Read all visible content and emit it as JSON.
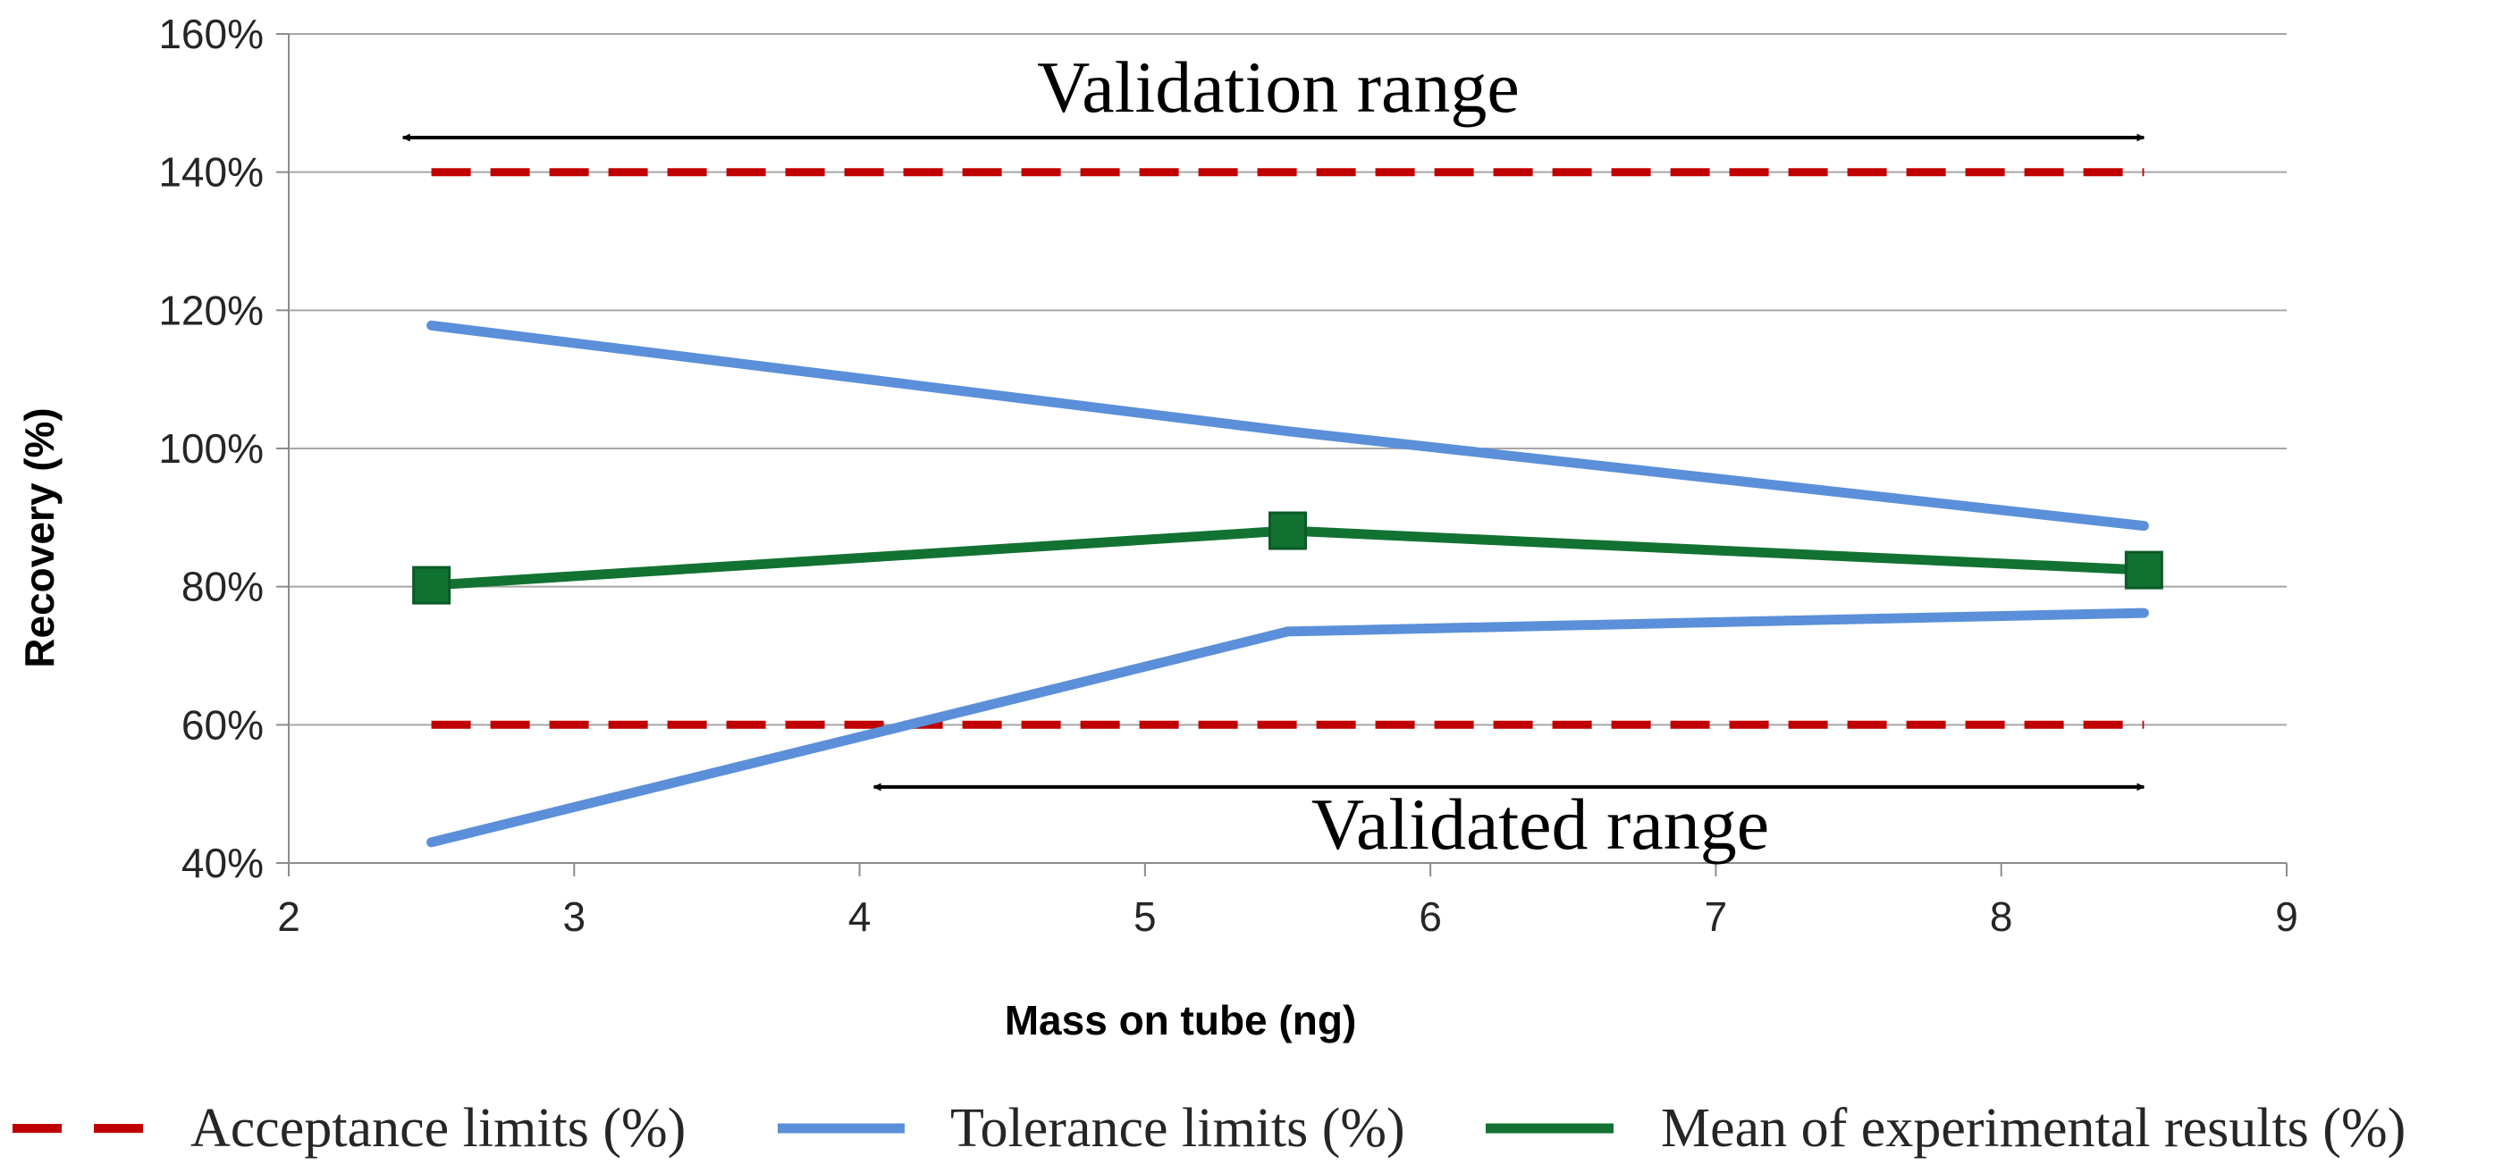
{
  "chart_data": {
    "type": "line",
    "title": "",
    "xlabel": "Mass on tube (ng)",
    "ylabel": "Recovery (%)",
    "xlim": [
      2,
      9
    ],
    "ylim": [
      40,
      160
    ],
    "x_ticks": [
      2,
      3,
      4,
      5,
      6,
      7,
      8,
      9
    ],
    "x_tick_labels": [
      "2",
      "3",
      "4",
      "5",
      "6",
      "7",
      "8",
      "9"
    ],
    "y_ticks": [
      40,
      60,
      80,
      100,
      120,
      140,
      160
    ],
    "y_tick_labels": [
      "40%",
      "60%",
      "80%",
      "100%",
      "120%",
      "140%",
      "160%"
    ],
    "grid": "horizontal",
    "series": [
      {
        "name": "Acceptance limits (%)",
        "role": "upper",
        "color": "#C00000",
        "style": "dashed",
        "x": [
          2.5,
          8.5
        ],
        "values": [
          140,
          140
        ]
      },
      {
        "name": "Acceptance limits (%)",
        "role": "lower",
        "color": "#C00000",
        "style": "dashed",
        "x": [
          2.5,
          8.5
        ],
        "values": [
          60,
          60
        ]
      },
      {
        "name": "Tolerance limits (%)",
        "role": "upper",
        "color": "#5B8FD9",
        "style": "solid",
        "x": [
          2.5,
          5.5,
          8.5
        ],
        "values": [
          117.8,
          102.5,
          88.8
        ]
      },
      {
        "name": "Tolerance limits (%)",
        "role": "lower",
        "color": "#5B8FD9",
        "style": "solid",
        "x": [
          2.5,
          5.5,
          8.5
        ],
        "values": [
          43,
          73.5,
          76.2
        ]
      },
      {
        "name": "Mean of experimental results (%)",
        "role": "mean",
        "color": "#127232",
        "style": "solid",
        "marker": "square",
        "x": [
          2.5,
          5.5,
          8.5
        ],
        "values": [
          80.2,
          88.1,
          82.4
        ]
      }
    ],
    "annotations": [
      {
        "text": "Validation range",
        "x_start": 2.4,
        "x_end": 8.5,
        "y": 145
      },
      {
        "text": "Validated range",
        "x_start": 4.05,
        "x_end": 8.5,
        "y": 51
      }
    ],
    "legend": {
      "position": "bottom",
      "entries": [
        {
          "label": "Acceptance limits (%)",
          "color": "#C00000",
          "style": "dashed"
        },
        {
          "label": "Tolerance limits (%)",
          "color": "#5B8FD9",
          "style": "solid"
        },
        {
          "label": "Mean of experimental results (%)",
          "color": "#127232",
          "style": "solid"
        }
      ]
    }
  }
}
